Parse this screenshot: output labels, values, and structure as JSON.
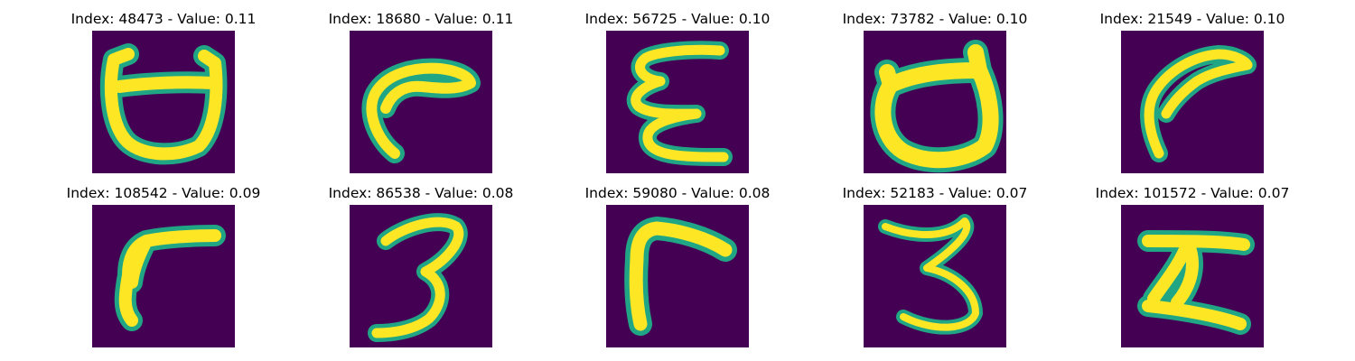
{
  "colors": {
    "background": "#440154",
    "stroke_edge": "#21a685",
    "stroke_core": "#fde725"
  },
  "panels": [
    {
      "title": "Index: 48473 - Value: 0.11",
      "glyph": "rounded-cup-with-horns"
    },
    {
      "title": "Index: 18680 - Value: 0.11",
      "glyph": "hook-curve"
    },
    {
      "title": "Index: 56725 - Value: 0.10",
      "glyph": "epsilon-shape"
    },
    {
      "title": "Index: 73782 - Value: 0.10",
      "glyph": "filled-cup-with-horns"
    },
    {
      "title": "Index: 21549 - Value: 0.10",
      "glyph": "slanted-hook"
    },
    {
      "title": "Index: 108542 - Value: 0.09",
      "glyph": "gamma-shape"
    },
    {
      "title": "Index: 86538 - Value: 0.08",
      "glyph": "digit-three"
    },
    {
      "title": "Index: 59080 - Value: 0.08",
      "glyph": "bent-gamma"
    },
    {
      "title": "Index: 52183 - Value: 0.07",
      "glyph": "digit-three-thin"
    },
    {
      "title": "Index: 101572 - Value: 0.07",
      "glyph": "z-block"
    }
  ]
}
